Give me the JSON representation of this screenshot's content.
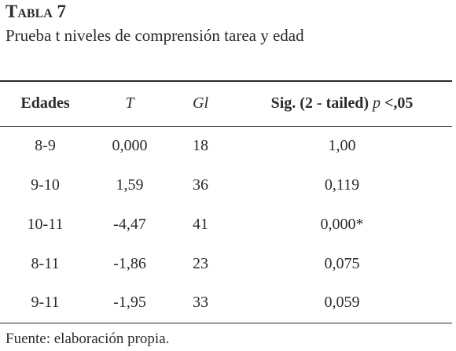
{
  "title": "Tabla 7",
  "subtitle": "Prueba t niveles de comprensión tarea y edad",
  "table": {
    "header": [
      "Edades",
      "T",
      "Gl",
      [
        "Sig. (2 - tailed)",
        "p",
        "<,05"
      ]
    ],
    "rows": [
      [
        "8-9",
        "0,000",
        "18",
        "1,00"
      ],
      [
        "9-10",
        "1,59",
        "36",
        "0,119"
      ],
      [
        "10-11",
        "-4,47",
        "41",
        "0,000*"
      ],
      [
        "8-11",
        "-1,86",
        "23",
        "0,075"
      ],
      [
        "9-11",
        "-1,95",
        "33",
        "0,059"
      ]
    ]
  },
  "footer": "Fuente: elaboración propia."
}
